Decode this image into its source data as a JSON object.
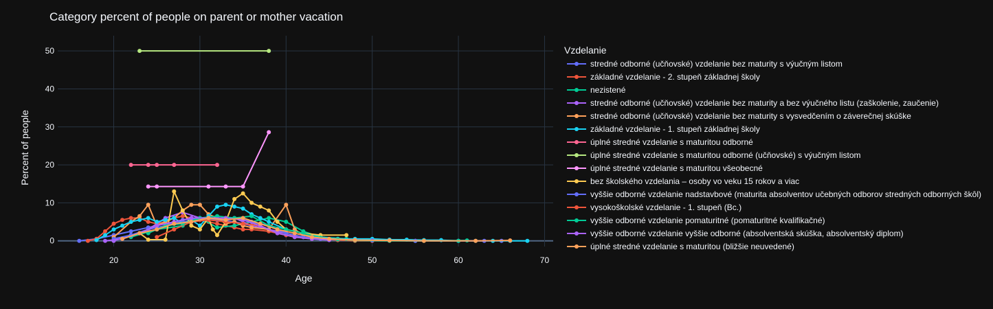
{
  "chart_data": {
    "type": "line",
    "title": "Category percent of people on parent or mother vacation",
    "xlabel": "Age",
    "ylabel": "Percent of people",
    "xlim": [
      13.5,
      71
    ],
    "ylim": [
      -1.5,
      54
    ],
    "xticks": [
      20,
      30,
      40,
      50,
      60,
      70
    ],
    "yticks": [
      0,
      10,
      20,
      30,
      40,
      50
    ],
    "grid": true,
    "legend": {
      "title": "Vzdelanie",
      "placement": "right"
    },
    "series": [
      {
        "name": "stredné odborné (učňovské) vzdelanie bez maturity s výučným listom",
        "color": "#636efa",
        "points": [
          [
            16,
            0
          ],
          [
            18,
            0.5
          ],
          [
            20,
            1.5
          ],
          [
            22,
            2.5
          ],
          [
            24,
            3.5
          ],
          [
            26,
            4.5
          ],
          [
            28,
            5
          ],
          [
            30,
            5.5
          ],
          [
            32,
            5.5
          ],
          [
            34,
            5
          ],
          [
            36,
            4
          ],
          [
            38,
            3
          ],
          [
            40,
            1.5
          ],
          [
            42,
            1
          ],
          [
            44,
            0.5
          ],
          [
            46,
            0.2
          ],
          [
            50,
            0.1
          ],
          [
            55,
            0
          ],
          [
            60,
            0
          ],
          [
            65,
            0
          ]
        ]
      },
      {
        "name": "základné vzdelanie - 2. stupeň základnej školy",
        "color": "#EF553B",
        "points": [
          [
            17,
            0
          ],
          [
            18,
            0.5
          ],
          [
            19,
            2.5
          ],
          [
            20,
            4.5
          ],
          [
            21,
            5.5
          ],
          [
            22,
            6
          ],
          [
            23,
            6
          ],
          [
            24,
            5
          ],
          [
            25,
            4.5
          ],
          [
            26,
            5
          ],
          [
            27,
            6
          ],
          [
            28,
            6.5
          ],
          [
            29,
            6
          ],
          [
            30,
            5.5
          ],
          [
            31,
            5
          ],
          [
            32,
            4.5
          ],
          [
            33,
            4
          ],
          [
            34,
            3.5
          ],
          [
            35,
            3
          ],
          [
            36,
            3
          ],
          [
            38,
            2.5
          ],
          [
            40,
            1.5
          ],
          [
            42,
            1
          ],
          [
            44,
            0.5
          ],
          [
            46,
            0.2
          ],
          [
            48,
            0
          ],
          [
            50,
            0
          ],
          [
            55,
            0
          ]
        ]
      },
      {
        "name": "nezistené",
        "color": "#00cc96",
        "points": [
          [
            22,
            1
          ],
          [
            25,
            3
          ],
          [
            28,
            4
          ],
          [
            30,
            6
          ],
          [
            32,
            3.5
          ],
          [
            34,
            4
          ],
          [
            36,
            5
          ],
          [
            38,
            6
          ],
          [
            40,
            5
          ],
          [
            42,
            2.5
          ],
          [
            44,
            1
          ],
          [
            47,
            0.5
          ],
          [
            50,
            0.2
          ],
          [
            55,
            0
          ],
          [
            61,
            0.1
          ]
        ]
      },
      {
        "name": "stredné odborné (učňovské) vzdelanie bez maturity a bez výučného listu (zaškolenie, zaučenie)",
        "color": "#ab63fa",
        "points": [
          [
            20,
            0
          ],
          [
            22,
            1.5
          ],
          [
            24,
            3
          ],
          [
            26,
            6
          ],
          [
            28,
            7.5
          ],
          [
            30,
            6
          ],
          [
            32,
            5.5
          ],
          [
            34,
            6
          ],
          [
            36,
            4
          ],
          [
            38,
            3
          ],
          [
            40,
            2
          ],
          [
            42,
            1
          ]
        ]
      },
      {
        "name": "stredné odborné (učňovské) vzdelanie bez maturity s vysvedčením o záverečnej skúške",
        "color": "#FFA15A",
        "points": [
          [
            20,
            1
          ],
          [
            22,
            5
          ],
          [
            23,
            6.5
          ],
          [
            24,
            9.5
          ],
          [
            25,
            4
          ],
          [
            26,
            5
          ],
          [
            27,
            6
          ],
          [
            28,
            8
          ],
          [
            29,
            9.5
          ],
          [
            30,
            9.5
          ],
          [
            31,
            7
          ],
          [
            32,
            6
          ],
          [
            33,
            4.5
          ],
          [
            34,
            5
          ],
          [
            35,
            4
          ],
          [
            36,
            3.5
          ],
          [
            38,
            3
          ],
          [
            40,
            9.5
          ],
          [
            41,
            3
          ],
          [
            42,
            1.5
          ],
          [
            44,
            1
          ],
          [
            46,
            0.5
          ]
        ]
      },
      {
        "name": "základné vzdelanie - 1. stupeň základnej školy",
        "color": "#19d3f3",
        "points": [
          [
            18,
            0.2
          ],
          [
            19,
            1.5
          ],
          [
            20,
            3
          ],
          [
            21,
            4
          ],
          [
            22,
            5
          ],
          [
            23,
            5.5
          ],
          [
            24,
            6
          ],
          [
            25,
            5
          ],
          [
            26,
            5.5
          ],
          [
            27,
            6
          ],
          [
            28,
            4.5
          ],
          [
            29,
            5.5
          ],
          [
            30,
            4
          ],
          [
            31,
            6.5
          ],
          [
            32,
            9
          ],
          [
            33,
            9.5
          ],
          [
            34,
            9
          ],
          [
            35,
            8.5
          ],
          [
            36,
            7
          ],
          [
            37,
            6
          ],
          [
            38,
            5
          ],
          [
            40,
            3
          ],
          [
            42,
            2
          ],
          [
            44,
            1
          ],
          [
            46,
            0.5
          ],
          [
            48,
            0.5
          ],
          [
            50,
            0.5
          ],
          [
            52,
            0.3
          ],
          [
            54,
            0.3
          ],
          [
            56,
            0.2
          ],
          [
            58,
            0.2
          ],
          [
            60,
            0
          ],
          [
            62,
            0
          ],
          [
            64,
            0
          ],
          [
            66,
            0
          ],
          [
            68,
            0
          ]
        ]
      },
      {
        "name": "úplné stredné vzdelanie s maturitou odborné",
        "color": "#FF6692",
        "points": [
          [
            22,
            20
          ],
          [
            24,
            20
          ],
          [
            25,
            20
          ],
          [
            27,
            20
          ],
          [
            32,
            20
          ]
        ]
      },
      {
        "name": "úplné stredné vzdelanie s maturitou odborné (učňovské) s výučným listom",
        "color": "#B6E880",
        "points": [
          [
            23,
            50
          ],
          [
            38,
            50
          ]
        ]
      },
      {
        "name": "úplné stredné vzdelanie s maturitou všeobecné",
        "color": "#FF97FF",
        "points": [
          [
            24,
            14.3
          ],
          [
            25,
            14.3
          ],
          [
            31,
            14.3
          ],
          [
            33,
            14.3
          ],
          [
            35,
            14.3
          ],
          [
            38,
            28.6
          ]
        ]
      },
      {
        "name": "bez školského vzdelania – osoby vo veku 15 rokov a viac",
        "color": "#FECB52",
        "points": [
          [
            23,
            2
          ],
          [
            24,
            0.3
          ],
          [
            26,
            0.3
          ],
          [
            27,
            13
          ],
          [
            28,
            8
          ],
          [
            29,
            4
          ],
          [
            30,
            3
          ],
          [
            31,
            6
          ],
          [
            31.5,
            3
          ],
          [
            32,
            1.5
          ],
          [
            33,
            5
          ],
          [
            34,
            11
          ],
          [
            35,
            12.5
          ],
          [
            36,
            10
          ],
          [
            37,
            9
          ],
          [
            38,
            8
          ],
          [
            39,
            5
          ],
          [
            40,
            3
          ],
          [
            42,
            2
          ],
          [
            44,
            1.5
          ],
          [
            47,
            1.5
          ]
        ]
      },
      {
        "name": "vyššie odborné vzdelanie nadstavbové (maturita absolventov učebných odborov stredných odborných škôl)",
        "color": "#636efa",
        "points": [
          [
            20,
            0.5
          ],
          [
            22,
            1.5
          ],
          [
            24,
            3
          ],
          [
            26,
            4
          ],
          [
            28,
            5.5
          ],
          [
            30,
            6
          ],
          [
            32,
            5.5
          ],
          [
            34,
            6
          ],
          [
            36,
            5
          ],
          [
            38,
            4
          ],
          [
            40,
            2
          ],
          [
            42,
            1
          ],
          [
            44,
            0.5
          ],
          [
            50,
            0.1
          ],
          [
            55,
            0
          ],
          [
            60,
            0
          ],
          [
            63,
            0
          ]
        ]
      },
      {
        "name": "vysokoškolské vzdelanie - 1. stupeň (Bc.)",
        "color": "#EF553B",
        "points": [
          [
            25,
            1
          ],
          [
            27,
            3
          ],
          [
            29,
            5
          ],
          [
            31,
            5.5
          ],
          [
            33,
            5
          ],
          [
            35,
            4.5
          ],
          [
            37,
            4
          ],
          [
            39,
            2
          ],
          [
            41,
            1
          ],
          [
            43,
            0.5
          ]
        ]
      },
      {
        "name": "vyššie odborné vzdelanie pomaturitné (pomaturitné kvalifikačné)",
        "color": "#00cc96",
        "points": [
          [
            24,
            2
          ],
          [
            26,
            4
          ],
          [
            28,
            4.5
          ],
          [
            30,
            6
          ],
          [
            32,
            6.5
          ],
          [
            34,
            6
          ],
          [
            36,
            6.5
          ],
          [
            38,
            4
          ],
          [
            40,
            3
          ],
          [
            42,
            2
          ],
          [
            44,
            0.8
          ],
          [
            46,
            0.4
          ],
          [
            48,
            0.1
          ],
          [
            52,
            0
          ],
          [
            56,
            0
          ],
          [
            60,
            0
          ]
        ]
      },
      {
        "name": "vyššie odborné vzdelanie vyššie odborné (absolventská skúška, absolventský diplom)",
        "color": "#ab63fa",
        "points": [
          [
            19,
            0
          ],
          [
            21,
            0.5
          ],
          [
            23,
            2
          ],
          [
            25,
            4
          ],
          [
            27,
            5
          ],
          [
            29,
            6
          ],
          [
            31,
            6
          ],
          [
            33,
            6
          ],
          [
            35,
            5.5
          ],
          [
            37,
            4
          ],
          [
            39,
            2
          ],
          [
            41,
            1
          ],
          [
            43,
            0.5
          ],
          [
            45,
            0.2
          ]
        ]
      },
      {
        "name": "úplné stredné vzdelanie s maturitou (bližšie neuvedené)",
        "color": "#FFA15A",
        "points": [
          [
            21,
            0.5
          ],
          [
            23,
            2
          ],
          [
            25,
            3
          ],
          [
            27,
            4.5
          ],
          [
            29,
            5
          ],
          [
            31,
            6
          ],
          [
            33,
            5.5
          ],
          [
            35,
            6
          ],
          [
            37,
            4.5
          ],
          [
            39,
            3
          ],
          [
            41,
            2
          ],
          [
            43,
            1
          ],
          [
            45,
            0.5
          ],
          [
            48,
            0.2
          ],
          [
            52,
            0.1
          ],
          [
            56,
            0
          ],
          [
            62,
            0
          ],
          [
            66,
            0.1
          ]
        ]
      }
    ]
  }
}
